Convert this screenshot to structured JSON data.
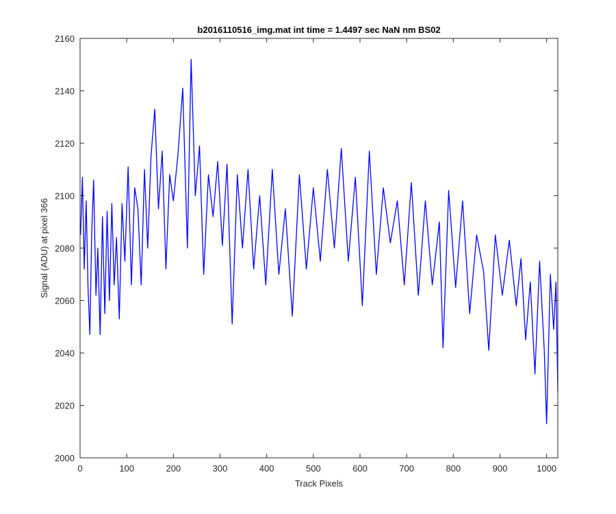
{
  "chart_data": {
    "type": "line",
    "title": "b2016110516_img.mat int time = 1.4497 sec  NaN nm BS02",
    "xlabel": "Track Pixels",
    "ylabel": "Signal (ADU) at pixel 366",
    "xlim": [
      0,
      1024
    ],
    "ylim": [
      2000,
      2160
    ],
    "xticks": [
      0,
      100,
      200,
      300,
      400,
      500,
      600,
      700,
      800,
      900,
      1000
    ],
    "yticks": [
      2000,
      2020,
      2040,
      2060,
      2080,
      2100,
      2120,
      2140,
      2160
    ],
    "grid": false,
    "series": [
      {
        "color": "#0000ff",
        "x": [
          1,
          5,
          9,
          13,
          17,
          21,
          25,
          29,
          34,
          38,
          43,
          48,
          53,
          58,
          63,
          68,
          73,
          78,
          84,
          90,
          96,
          103,
          110,
          117,
          124,
          131,
          138,
          145,
          152,
          160,
          168,
          176,
          184,
          192,
          200,
          210,
          220,
          230,
          238,
          247,
          256,
          265,
          275,
          285,
          295,
          305,
          315,
          326,
          337,
          348,
          360,
          372,
          385,
          398,
          412,
          426,
          440,
          455,
          470,
          485,
          500,
          515,
          530,
          545,
          560,
          575,
          590,
          605,
          620,
          635,
          650,
          665,
          680,
          695,
          710,
          725,
          740,
          755,
          770,
          778,
          790,
          805,
          820,
          835,
          850,
          865,
          876,
          890,
          905,
          920,
          935,
          945,
          955,
          965,
          975,
          985,
          995,
          1000,
          1008,
          1015,
          1020,
          1024
        ],
        "y": [
          2085,
          2107,
          2072,
          2098,
          2065,
          2047,
          2086,
          2106,
          2062,
          2080,
          2047,
          2092,
          2055,
          2094,
          2060,
          2097,
          2066,
          2084,
          2053,
          2097,
          2075,
          2111,
          2066,
          2103,
          2095,
          2066,
          2110,
          2080,
          2115,
          2133,
          2095,
          2117,
          2072,
          2108,
          2098,
          2116,
          2141,
          2080,
          2152,
          2100,
          2119,
          2070,
          2108,
          2092,
          2113,
          2081,
          2112,
          2051,
          2108,
          2080,
          2110,
          2072,
          2100,
          2066,
          2110,
          2070,
          2095,
          2054,
          2108,
          2072,
          2103,
          2075,
          2110,
          2080,
          2118,
          2075,
          2107,
          2058,
          2117,
          2070,
          2103,
          2082,
          2098,
          2066,
          2105,
          2062,
          2098,
          2066,
          2090,
          2042,
          2102,
          2065,
          2098,
          2055,
          2085,
          2071,
          2041,
          2085,
          2062,
          2083,
          2058,
          2076,
          2045,
          2067,
          2032,
          2075,
          2041,
          2013,
          2070,
          2049,
          2067,
          2025
        ]
      }
    ]
  }
}
